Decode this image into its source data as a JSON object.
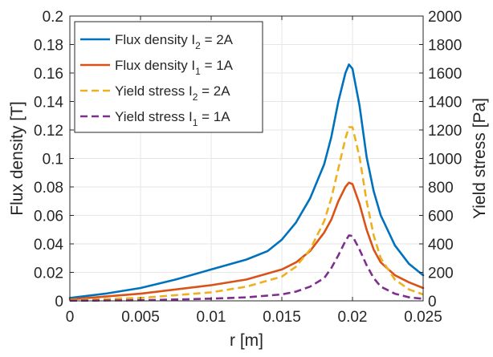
{
  "chart_data": {
    "type": "line",
    "xlabel": "r [m]",
    "ylabel_left": "Flux density [T]",
    "ylabel_right": "Yield stress [Pa]",
    "xlim": [
      0,
      0.025
    ],
    "ylim_left": [
      0,
      0.2
    ],
    "ylim_right": [
      0,
      2000
    ],
    "grid": true,
    "legend_position": "top-left",
    "x_ticks": [
      "0",
      "0.005",
      "0.01",
      "0.015",
      "0.02",
      "0.025"
    ],
    "x_tick_values": [
      0,
      0.005,
      0.01,
      0.015,
      0.02,
      0.025
    ],
    "y_left_ticks": [
      "0",
      "0.02",
      "0.04",
      "0.06",
      "0.08",
      "0.1",
      "0.12",
      "0.14",
      "0.16",
      "0.18",
      "0.2"
    ],
    "y_left_tick_values": [
      0,
      0.02,
      0.04,
      0.06,
      0.08,
      0.1,
      0.12,
      0.14,
      0.16,
      0.18,
      0.2
    ],
    "y_right_ticks": [
      "0",
      "200",
      "400",
      "600",
      "800",
      "1000",
      "1200",
      "1400",
      "1600",
      "1800",
      "2000"
    ],
    "y_right_tick_values": [
      0,
      200,
      400,
      600,
      800,
      1000,
      1200,
      1400,
      1600,
      1800,
      2000
    ],
    "series": [
      {
        "legend": {
          "prefix": "Flux density  I",
          "sub": "2",
          "suffix": " = 2A"
        },
        "axis": "left",
        "style": "solid",
        "color": "#0072BD",
        "x": [
          0,
          0.0025,
          0.005,
          0.0075,
          0.01,
          0.0125,
          0.014,
          0.015,
          0.016,
          0.017,
          0.018,
          0.0185,
          0.019,
          0.0195,
          0.01975,
          0.02,
          0.0205,
          0.021,
          0.0215,
          0.022,
          0.023,
          0.024,
          0.025
        ],
        "y": [
          0.002,
          0.005,
          0.009,
          0.015,
          0.022,
          0.029,
          0.035,
          0.043,
          0.055,
          0.072,
          0.096,
          0.115,
          0.14,
          0.16,
          0.166,
          0.163,
          0.137,
          0.101,
          0.077,
          0.06,
          0.039,
          0.026,
          0.018
        ]
      },
      {
        "legend": {
          "prefix": "Flux density  I",
          "sub": "1",
          "suffix": " = 1A"
        },
        "axis": "left",
        "style": "solid",
        "color": "#D95319",
        "x": [
          0,
          0.005,
          0.01,
          0.0125,
          0.015,
          0.016,
          0.017,
          0.018,
          0.0185,
          0.019,
          0.0195,
          0.01975,
          0.02,
          0.0205,
          0.021,
          0.0215,
          0.022,
          0.023,
          0.024,
          0.025
        ],
        "y": [
          0.001,
          0.005,
          0.011,
          0.015,
          0.022,
          0.027,
          0.035,
          0.048,
          0.057,
          0.07,
          0.08,
          0.083,
          0.082,
          0.068,
          0.05,
          0.036,
          0.027,
          0.018,
          0.013,
          0.009
        ]
      },
      {
        "legend": {
          "prefix": "Yield stress  I",
          "sub": "2",
          "suffix": " = 2A"
        },
        "axis": "right",
        "style": "dashed",
        "color": "#EDB120",
        "x": [
          0,
          0.005,
          0.01,
          0.0125,
          0.015,
          0.016,
          0.017,
          0.018,
          0.0185,
          0.019,
          0.0195,
          0.01975,
          0.02,
          0.0205,
          0.021,
          0.0215,
          0.022,
          0.023,
          0.024,
          0.025
        ],
        "y": [
          5,
          20,
          60,
          100,
          170,
          240,
          360,
          560,
          720,
          930,
          1140,
          1220,
          1220,
          1010,
          700,
          460,
          300,
          150,
          80,
          45
        ]
      },
      {
        "legend": {
          "prefix": "Yield stress  I",
          "sub": "1",
          "suffix": " = 1A"
        },
        "axis": "right",
        "style": "dashed",
        "color": "#7E2F8E",
        "x": [
          0,
          0.005,
          0.01,
          0.0125,
          0.015,
          0.016,
          0.017,
          0.018,
          0.0185,
          0.019,
          0.0195,
          0.01975,
          0.02,
          0.0205,
          0.021,
          0.0215,
          0.022,
          0.023,
          0.024,
          0.025
        ],
        "y": [
          1,
          4,
          15,
          25,
          45,
          65,
          100,
          160,
          230,
          320,
          420,
          460,
          455,
          360,
          250,
          160,
          100,
          50,
          25,
          14
        ]
      }
    ]
  }
}
